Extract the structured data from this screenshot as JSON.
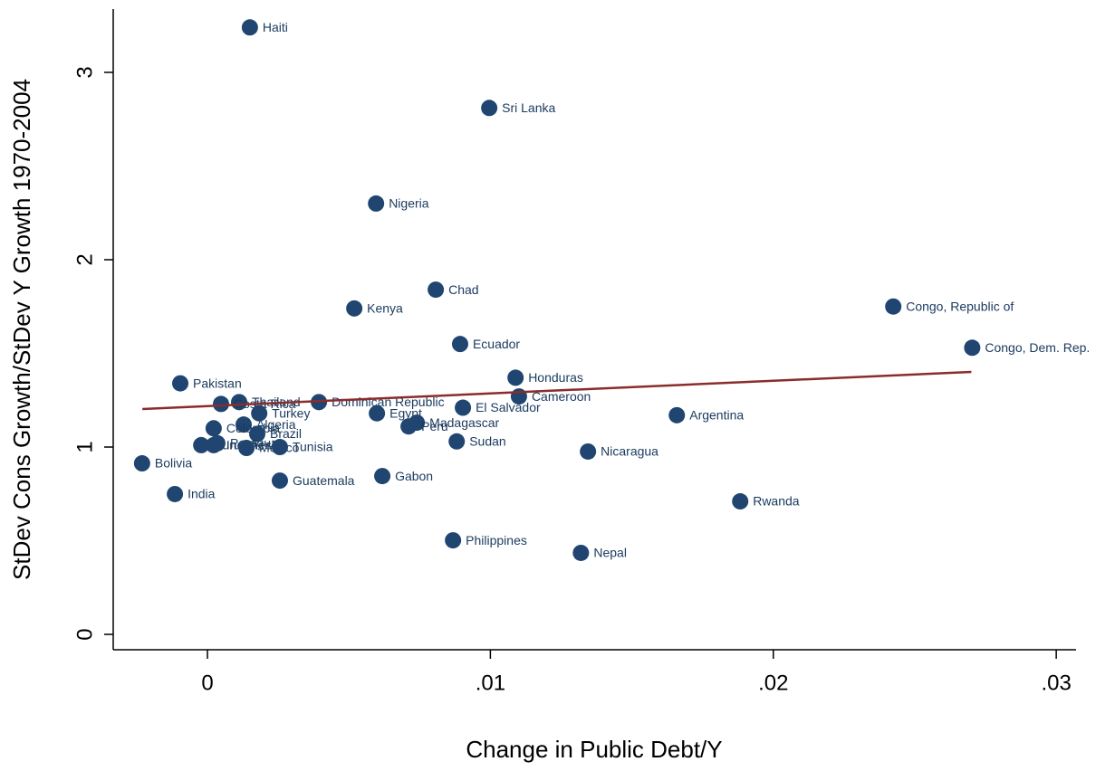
{
  "chart_data": {
    "type": "scatter",
    "x_label": "Change in Public Debt/Y",
    "y_label": "StDev Cons Growth/StDev Y Growth 1970-2004",
    "xlim": [
      -0.00333,
      0.0307
    ],
    "ylim": [
      -0.082,
      3.338
    ],
    "xticks": [
      0,
      {
        "value": 0.01,
        "label": ".01"
      },
      {
        "value": 0.02,
        "label": ".02"
      },
      {
        "value": 0.03,
        "label": ".03"
      }
    ],
    "yticks": [
      0,
      1,
      2,
      3
    ],
    "grid": false,
    "color": "#1f4570",
    "labels": [
      "Haiti",
      "Sri Lanka",
      "Nigeria",
      "Chad",
      "Kenya",
      "Congo, Republic of",
      "Congo, Dem. Rep.",
      "Ecuador",
      "Pakistan",
      "Honduras",
      "Cameroon",
      "Thailand",
      "Costa Rica",
      "Dominican Republic",
      "El Salvador",
      "Turkey",
      "Egypt",
      "Argentina",
      "Algeria",
      "Madagascar",
      "Peru",
      "Colombia",
      "Brazil",
      "Sudan",
      "Burundi",
      "Indonesia",
      "Paraguay",
      "Mexico",
      "Tunisia",
      "Nicaragua",
      "Bolivia",
      "Gabon",
      "Guatemala",
      "India",
      "Rwanda",
      "Philippines",
      "Nepal"
    ],
    "x": [
      0.0015,
      0.00996,
      0.00596,
      0.00807,
      0.00519,
      0.02424,
      0.02703,
      0.00893,
      -0.00096,
      0.01089,
      0.01101,
      0.00112,
      0.00048,
      0.00394,
      0.00903,
      0.00183,
      0.00599,
      0.01659,
      0.00128,
      0.0074,
      0.00711,
      0.00022,
      0.00176,
      0.00881,
      -0.00022,
      0.00022,
      0.00035,
      0.00138,
      0.00256,
      0.01345,
      -0.00231,
      0.00618,
      0.00256,
      -0.00115,
      0.01883,
      0.00868,
      0.0132
    ],
    "y": [
      3.24,
      2.81,
      2.3,
      1.84,
      1.74,
      1.75,
      1.53,
      1.55,
      1.34,
      1.37,
      1.27,
      1.24,
      1.23,
      1.24,
      1.21,
      1.18,
      1.18,
      1.17,
      1.12,
      1.13,
      1.11,
      1.1,
      1.07,
      1.03,
      1.01,
      1.01,
      1.02,
      0.995,
      1.0,
      0.976,
      0.913,
      0.845,
      0.821,
      0.749,
      0.71,
      0.502,
      0.435
    ],
    "fit_line": {
      "x": [
        -0.0023,
        0.027
      ],
      "y": [
        1.203,
        1.401
      ],
      "color": "#8b2c2c"
    }
  }
}
